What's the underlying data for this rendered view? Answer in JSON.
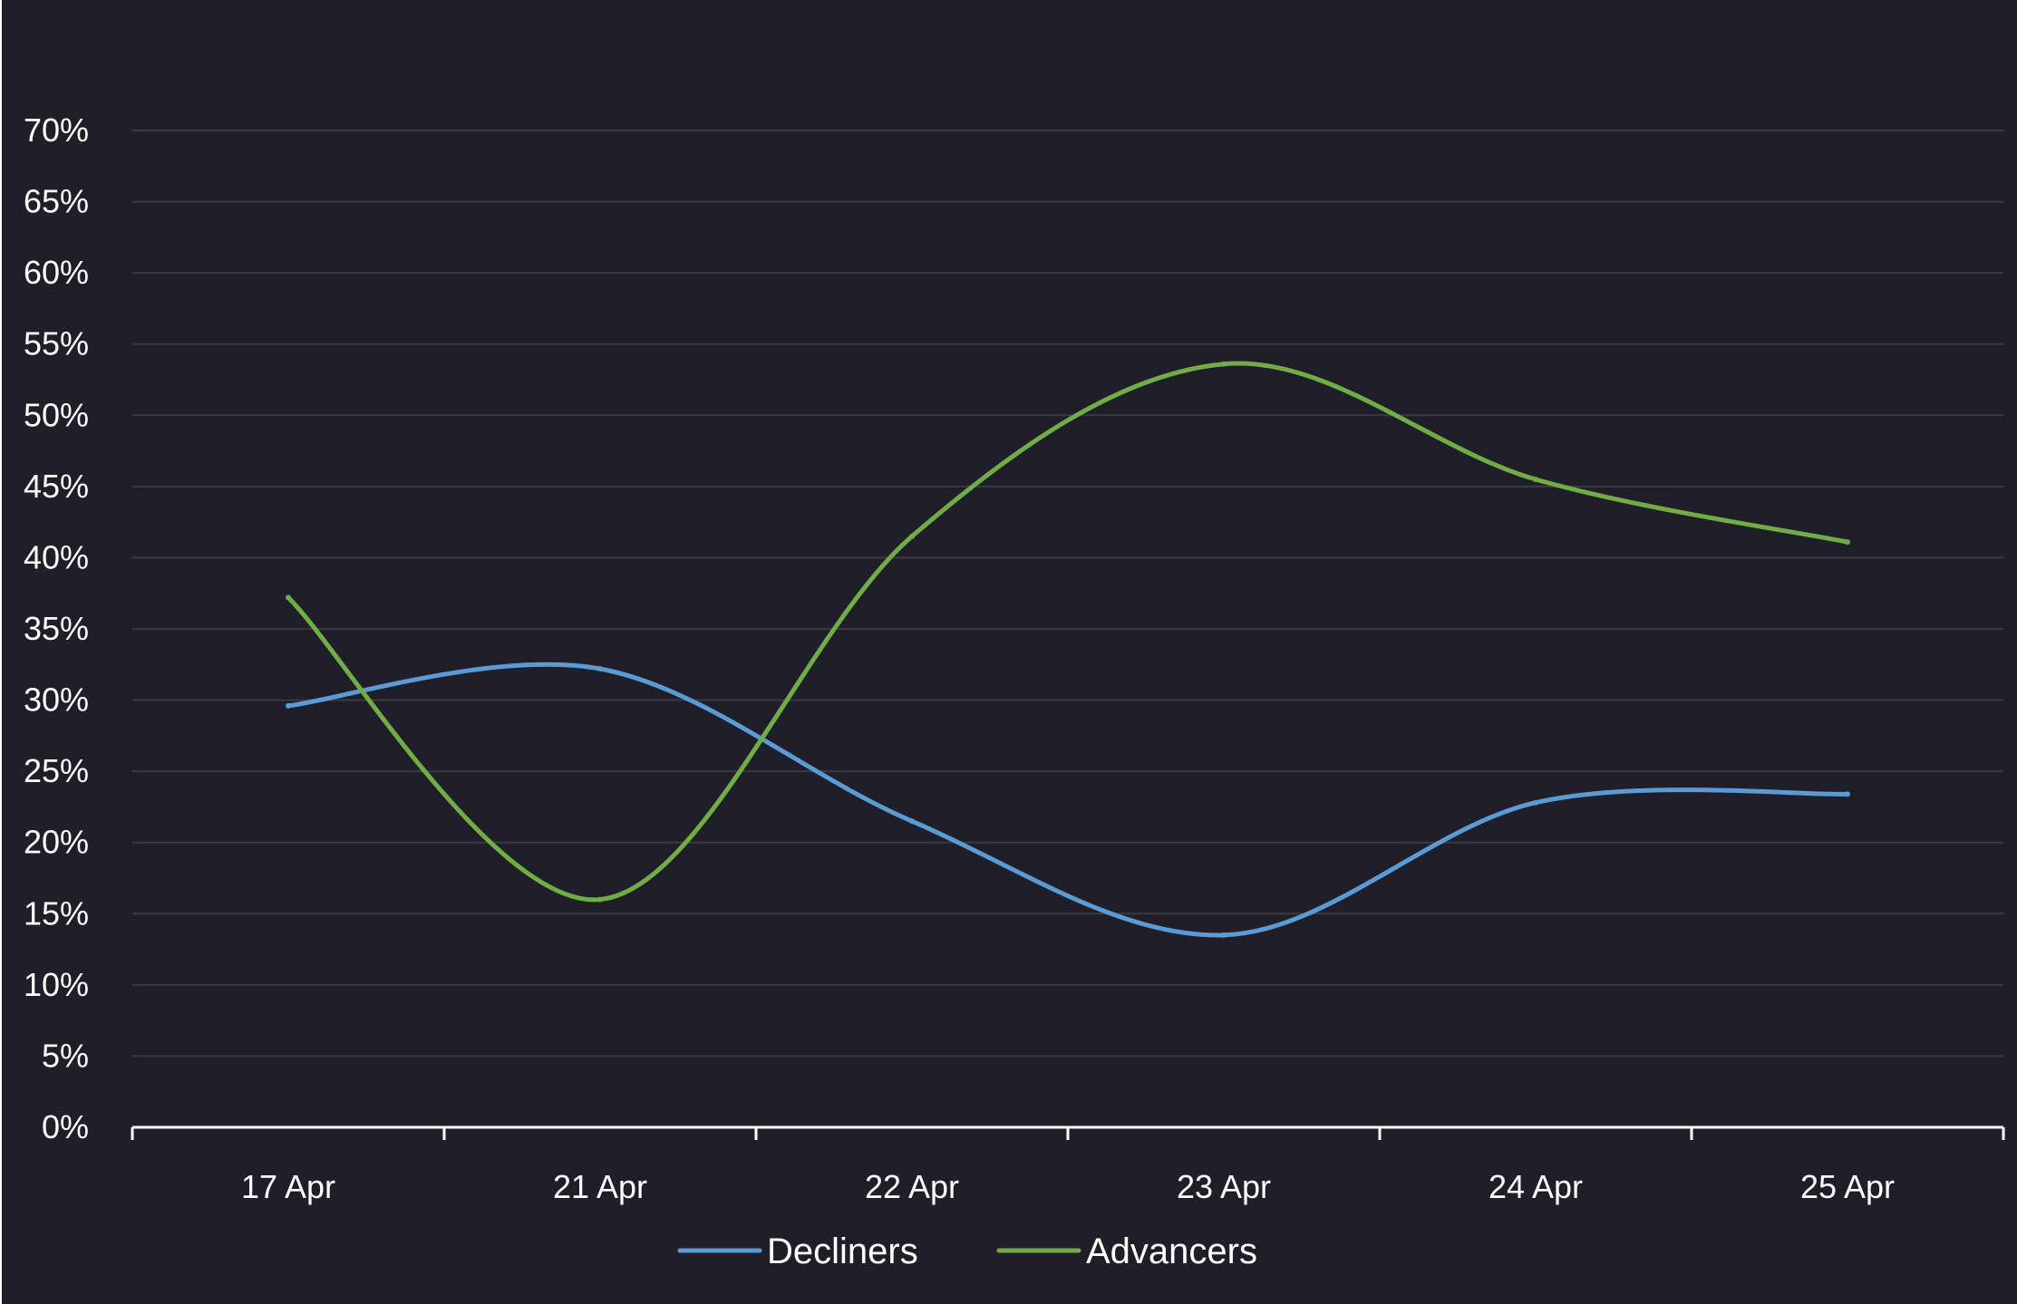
{
  "chart_data": {
    "type": "line",
    "title": "",
    "xlabel": "",
    "ylabel": "",
    "categories": [
      "17 Apr",
      "21 Apr",
      "22 Apr",
      "23 Apr",
      "24 Apr",
      "25 Apr"
    ],
    "ylim": [
      0,
      70
    ],
    "y_ticks": [
      0,
      5,
      10,
      15,
      20,
      25,
      30,
      35,
      40,
      45,
      50,
      55,
      60,
      65,
      70
    ],
    "y_tick_labels": [
      "0%",
      "5%",
      "10%",
      "15%",
      "20%",
      "25%",
      "30%",
      "35%",
      "40%",
      "45%",
      "50%",
      "55%",
      "60%",
      "65%",
      "70%"
    ],
    "grid": true,
    "legend_position": "bottom",
    "series": [
      {
        "name": "Decliners",
        "color": "#5b9bd5",
        "values": [
          29.6,
          32.2,
          21.5,
          13.5,
          22.8,
          23.4
        ]
      },
      {
        "name": "Advancers",
        "color": "#70ad47",
        "values": [
          37.2,
          16.0,
          41.5,
          53.6,
          45.5,
          41.1
        ]
      }
    ],
    "background": "#1f1e29",
    "gridline_color": "#3a3a40",
    "axis_color": "#ffffff",
    "text_color": "#ffffff"
  }
}
